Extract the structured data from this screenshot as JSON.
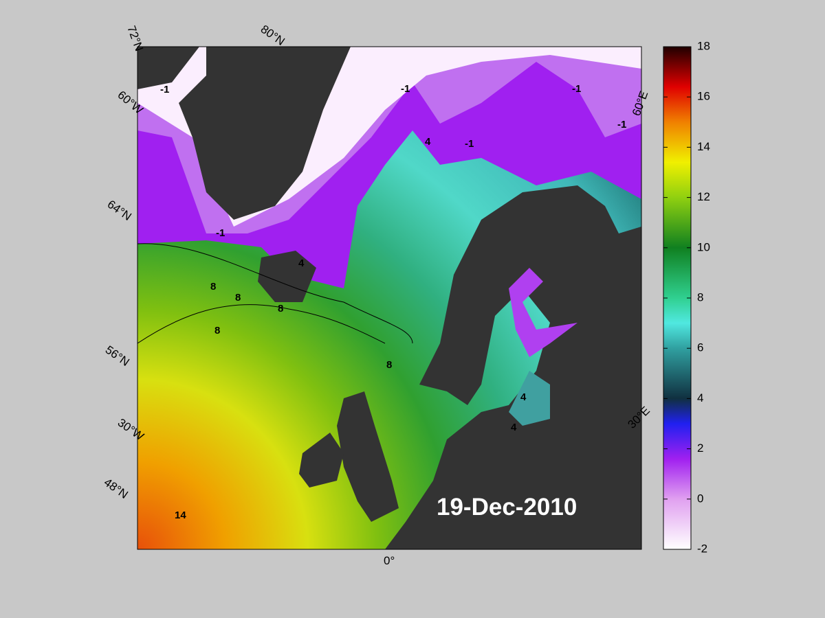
{
  "map": {
    "date_label": "19-Dec-2010",
    "graticule_labels": [
      "72°N",
      "80°N",
      "60°W",
      "64°N",
      "56°N",
      "30°W",
      "48°N",
      "0°",
      "30°E",
      "60°E"
    ],
    "contour_labels": [
      -1,
      -1,
      -1,
      -1,
      -1,
      -1,
      4,
      4,
      4,
      4,
      8,
      8,
      8,
      8,
      8,
      14
    ]
  },
  "colorbar": {
    "lim": [
      -2,
      18
    ],
    "ticks": [
      -2,
      0,
      2,
      4,
      6,
      8,
      10,
      12,
      14,
      16,
      18
    ]
  }
}
